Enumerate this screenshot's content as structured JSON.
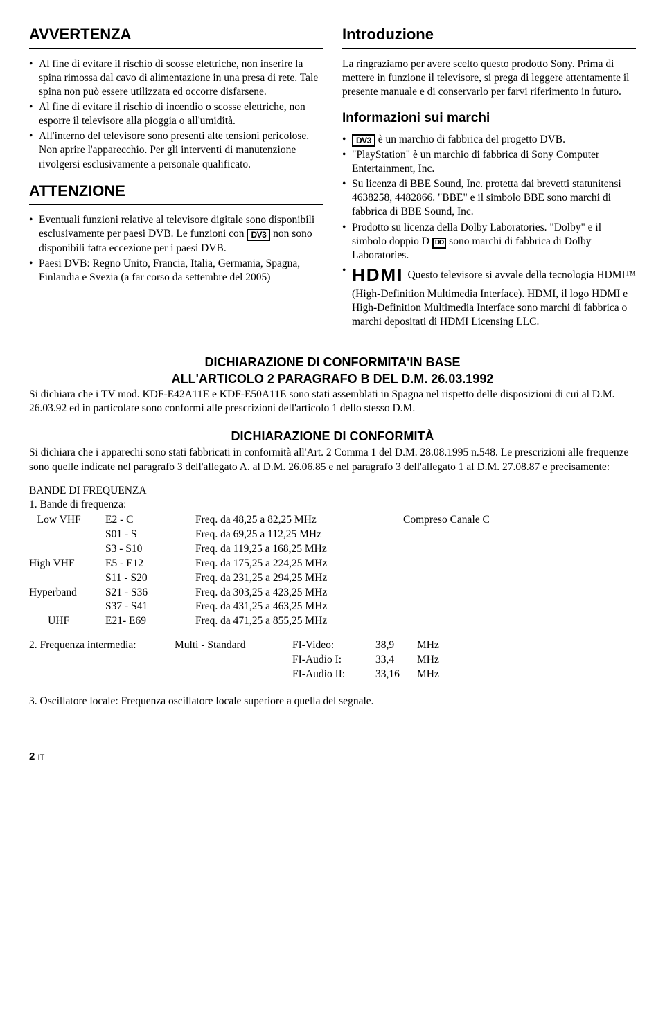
{
  "left": {
    "h_avvertenza": "AVVERTENZA",
    "avv": [
      "Al fine di evitare il rischio di scosse elettriche, non inserire la spina rimossa dal cavo di alimentazione in una presa di rete. Tale spina non può essere utilizzata ed occorre disfarsene.",
      "Al fine di evitare il rischio di incendio o scosse elettriche, non esporre il televisore alla pioggia o all'umidità.",
      "All'interno del televisore sono presenti alte tensioni pericolose. Non aprire l'apparecchio. Per gli interventi di manutenzione rivolgersi esclusivamente a personale qualificato."
    ],
    "h_attenzione": "ATTENZIONE",
    "att_pre": "Eventuali funzioni relative al televisore digitale sono disponibili esclusivamente per paesi DVB. Le funzioni con ",
    "att_logo": "DV3",
    "att_post": " non sono disponibili fatta eccezione per i paesi DVB.",
    "att2": "Paesi DVB: Regno Unito, Francia, Italia, Germania, Spagna, Finlandia e Svezia (a far corso da settembre del 2005)"
  },
  "right": {
    "h_intro": "Introduzione",
    "intro_p": "La ringraziamo per avere scelto questo prodotto Sony. Prima di mettere in funzione il televisore, si prega di leggere attentamente il presente manuale e di conservarlo per farvi riferimento in futuro.",
    "h_marchi": "Informazioni sui marchi",
    "m1_logo": "DV3",
    "m1": " è un marchio di fabbrica del progetto DVB.",
    "m2": "\"PlayStation\" è un marchio di fabbrica di Sony Computer Entertainment, Inc.",
    "m3": "Su licenza di BBE Sound, Inc. protetta dai brevetti statunitensi 4638258, 4482866. \"BBE\" e il simbolo BBE sono marchi di fabbrica di BBE Sound, Inc.",
    "m4_pre": "Prodotto su licenza della Dolby Laboratories. \"Dolby\" e il simbolo doppio D ",
    "m4_logo": "DD",
    "m4_post": " sono marchi di fabbrica di Dolby Laboratories.",
    "m5_logo": "HDMI",
    "m5_pre": "Questo televisore si avvale della tecnologia ",
    "m5_mid": "HDMI™ (High-Definition Multimedia Interface). HDMI, il logo HDMI e High-Definition Multimedia Interface sono marchi di fabbrica o marchi depositati di HDMI Licensing LLC."
  },
  "decl": {
    "h1a": "DICHIARAZIONE DI CONFORMITA'IN BASE",
    "h1b": "ALL'ARTICOLO 2 PARAGRAFO B DEL D.M. 26.03.1992",
    "p1": "Si dichiara che i TV mod. KDF-E42A11E e KDF-E50A11E sono stati assemblati in Spagna nel rispetto delle disposizioni di cui al D.M. 26.03.92 ed in particolare sono conformi alle prescrizioni dell'articolo 1 dello stesso D.M.",
    "h2": "DICHIARAZIONE DI CONFORMITÀ",
    "p2": "Si dichiara che i apparechi sono stati fabbricati in conformità all'Art. 2 Comma 1 del D.M. 28.08.1995 n.548. Le prescrizioni alle frequenze sono quelle indicate nel paragrafo 3 dell'allegato A. al D.M. 26.06.85 e nel paragrafo 3 dell'allegato 1 al D.M. 27.08.87 e precisamente:",
    "bande_h": "BANDE DI FREQUENZA",
    "bande_l": "1. Bande di frequenza:",
    "rows": [
      {
        "a": "   Low VHF",
        "b": "E2 - C",
        "c": "Freq. da 48,25 a 82,25 MHz",
        "d": "Compreso Canale C"
      },
      {
        "a": "",
        "b": "S01 - S",
        "c": "Freq. da 69,25 a 112,25 MHz",
        "d": ""
      },
      {
        "a": "",
        "b": "S3 - S10",
        "c": "Freq. da 119,25 a 168,25 MHz",
        "d": ""
      },
      {
        "a": "High VHF",
        "b": "E5 - E12",
        "c": "Freq. da 175,25 a 224,25 MHz",
        "d": ""
      },
      {
        "a": "",
        "b": "S11 - S20",
        "c": "Freq. da 231,25 a 294,25 MHz",
        "d": ""
      },
      {
        "a": "Hyperband",
        "b": "S21 - S36",
        "c": "Freq. da 303,25 a 423,25 MHz",
        "d": ""
      },
      {
        "a": "",
        "b": "S37 - S41",
        "c": "Freq. da 431,25 a 463,25 MHz",
        "d": ""
      },
      {
        "a": "       UHF",
        "b": "E21- E69",
        "c": "Freq. da 471,25 a 855,25 MHz",
        "d": ""
      }
    ],
    "fi_label": "2. Frequenza intermedia:",
    "fi_std": "Multi - Standard",
    "fi_rows": [
      {
        "k": "FI-Video:",
        "v": "38,9",
        "u": "MHz"
      },
      {
        "k": "FI-Audio I:",
        "v": "33,4",
        "u": "MHz"
      },
      {
        "k": "FI-Audio II:",
        "v": "33,16",
        "u": "MHz"
      }
    ],
    "osc": "3. Oscillatore locale: Frequenza oscillatore locale superiore a quella del segnale."
  },
  "footer": {
    "pg": "2",
    "lang": "IT"
  }
}
